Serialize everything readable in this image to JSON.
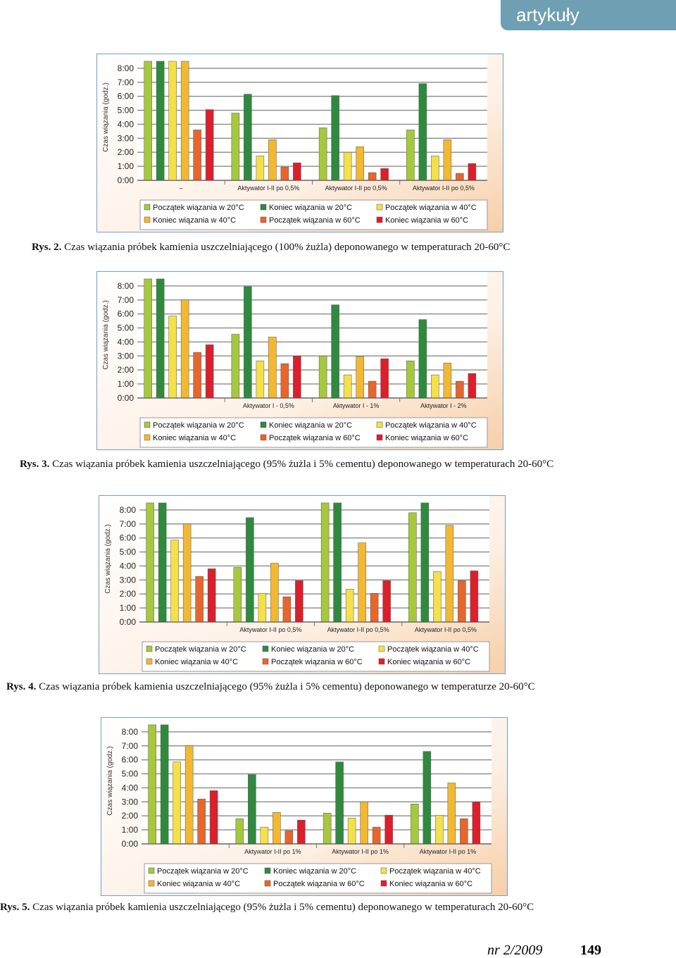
{
  "header": "artykuły",
  "footer": {
    "issue": "nr 2/2009",
    "page": "149"
  },
  "chart_data": [
    {
      "type": "bar",
      "caption_label": "Rys. 2.",
      "caption": "Czas wiązania próbek kamienia uszczelniającego (100% żużla) deponowanego w temperaturach 20-60°C",
      "ylabel": "Czas wiązania (godz.)",
      "categories": [
        "–",
        "Aktywator I-II po 0,5%",
        "Aktywator I-II po 0,5%",
        "Aktywator I-II po 0,5%"
      ],
      "ylim": [
        0,
        9
      ],
      "yticks": [
        {
          "value": 0,
          "label": "0:00"
        },
        {
          "value": 1,
          "label": "1:00"
        },
        {
          "value": 2,
          "label": "2:00"
        },
        {
          "value": 3,
          "label": "3:00"
        },
        {
          "value": 4,
          "label": "4:00"
        },
        {
          "value": 5,
          "label": "5:00"
        },
        {
          "value": 6,
          "label": "6:00"
        },
        {
          "value": 7,
          "label": "7:00"
        },
        {
          "value": 8,
          "label": "8:00"
        }
      ],
      "grid": true,
      "series": [
        {
          "name": "Początek wiązania w 20°C",
          "color": "#a6c83c",
          "values": [
            8.5,
            4.8,
            3.75,
            3.6
          ]
        },
        {
          "name": "Koniec wiązania w 20°C",
          "color": "#2f8a3e",
          "values": [
            8.5,
            6.15,
            6.05,
            6.9
          ]
        },
        {
          "name": "Początek wiązania w 40°C",
          "color": "#f4e049",
          "values": [
            8.5,
            1.75,
            2.0,
            1.75
          ]
        },
        {
          "name": "Koniec wiązania w 40°C",
          "color": "#f2b832",
          "values": [
            8.5,
            2.9,
            2.4,
            2.9
          ]
        },
        {
          "name": "Początek wiązania w 60°C",
          "color": "#e8652b",
          "values": [
            3.6,
            0.95,
            0.55,
            0.5
          ]
        },
        {
          "name": "Koniec wiązania w 60°C",
          "color": "#dc1f2b",
          "values": [
            5.05,
            1.25,
            0.85,
            1.2
          ]
        }
      ]
    },
    {
      "type": "bar",
      "caption_label": "Rys. 3.",
      "caption": "Czas wiązania próbek kamienia uszczelniającego (95% żużla i 5% cementu) deponowanego w temperaturach 20-60°C",
      "ylabel": "Czas wiązania (godz.)",
      "categories": [
        null,
        "Aktywator I - 0,5%",
        "Aktywator I - 1%",
        "Aktywator I - 2%"
      ],
      "ylim": [
        0,
        9
      ],
      "yticks": [
        {
          "value": 0,
          "label": "0:00"
        },
        {
          "value": 1,
          "label": "1:00"
        },
        {
          "value": 2,
          "label": "2:00"
        },
        {
          "value": 3,
          "label": "3:00"
        },
        {
          "value": 4,
          "label": "4:00"
        },
        {
          "value": 5,
          "label": "5:00"
        },
        {
          "value": 6,
          "label": "6:00"
        },
        {
          "value": 7,
          "label": "7:00"
        },
        {
          "value": 8,
          "label": "8:00"
        }
      ],
      "grid": true,
      "series": [
        {
          "name": "Początek wiązania w 20°C",
          "color": "#a6c83c",
          "values": [
            8.5,
            4.55,
            3.0,
            2.65
          ]
        },
        {
          "name": "Koniec wiązania w 20°C",
          "color": "#2f8a3e",
          "values": [
            8.5,
            7.95,
            6.65,
            5.6
          ]
        },
        {
          "name": "Początek wiązania w 40°C",
          "color": "#f4e049",
          "values": [
            5.85,
            2.65,
            1.65,
            1.65
          ]
        },
        {
          "name": "Koniec wiązania w 40°C",
          "color": "#f2b832",
          "values": [
            7.0,
            4.35,
            2.95,
            2.5
          ]
        },
        {
          "name": "Początek wiązania w 60°C",
          "color": "#e8652b",
          "values": [
            3.25,
            2.45,
            1.2,
            1.2
          ]
        },
        {
          "name": "Koniec wiązania w 60°C",
          "color": "#dc1f2b",
          "values": [
            3.8,
            3.0,
            2.8,
            1.75
          ]
        }
      ]
    },
    {
      "type": "bar",
      "caption_label": "Rys. 4.",
      "caption": "Czas wiązania próbek kamienia uszczelniającego (95% żużla i 5% cementu) deponowanego w temperaturze 20-60°C",
      "ylabel": "Czas wiązania (godz.)",
      "categories": [
        null,
        "Aktywator I-II po 0,5%",
        "Aktywator I-II po 0,5%",
        "Aktywator I-II po 0,5%"
      ],
      "ylim": [
        0,
        9
      ],
      "yticks": [
        {
          "value": 0,
          "label": "0:00"
        },
        {
          "value": 1,
          "label": "1:00"
        },
        {
          "value": 2,
          "label": "2:00"
        },
        {
          "value": 3,
          "label": "3:00"
        },
        {
          "value": 4,
          "label": "4:00"
        },
        {
          "value": 5,
          "label": "5:00"
        },
        {
          "value": 6,
          "label": "6:00"
        },
        {
          "value": 7,
          "label": "7:00"
        },
        {
          "value": 8,
          "label": "8:00"
        }
      ],
      "grid": true,
      "series": [
        {
          "name": "Początek wiązania w 20°C",
          "color": "#a6c83c",
          "values": [
            8.5,
            3.9,
            8.5,
            7.8
          ]
        },
        {
          "name": "Koniec wiązania w 20°C",
          "color": "#2f8a3e",
          "values": [
            8.5,
            7.45,
            8.5,
            8.5
          ]
        },
        {
          "name": "Początek wiązania w 40°C",
          "color": "#f4e049",
          "values": [
            5.85,
            2.05,
            2.35,
            3.6
          ]
        },
        {
          "name": "Koniec wiązania w 40°C",
          "color": "#f2b832",
          "values": [
            7.0,
            4.2,
            5.65,
            6.9
          ]
        },
        {
          "name": "Początek wiązania w 60°C",
          "color": "#e8652b",
          "values": [
            3.25,
            1.8,
            2.05,
            2.95
          ]
        },
        {
          "name": "Koniec wiązania w 60°C",
          "color": "#dc1f2b",
          "values": [
            3.8,
            2.95,
            2.95,
            3.65
          ]
        }
      ]
    },
    {
      "type": "bar",
      "caption_label": "Rys. 5.",
      "caption": "Czas wiązania próbek kamienia uszczelniającego (95% żużla i 5% cementu) deponowanego w temperaturach 20-60°C",
      "ylabel": "Czas wiązania (godz.)",
      "categories": [
        null,
        "Aktywator I-II po 1%",
        "Aktywator I-II po 1%",
        "Aktywator I-II po 1%"
      ],
      "ylim": [
        0,
        9
      ],
      "yticks": [
        {
          "value": 0,
          "label": "0:00"
        },
        {
          "value": 1,
          "label": "1:00"
        },
        {
          "value": 2,
          "label": "2:00"
        },
        {
          "value": 3,
          "label": "3:00"
        },
        {
          "value": 4,
          "label": "4:00"
        },
        {
          "value": 5,
          "label": "5:00"
        },
        {
          "value": 6,
          "label": "6:00"
        },
        {
          "value": 7,
          "label": "7:00"
        },
        {
          "value": 8,
          "label": "8:00"
        }
      ],
      "grid": true,
      "series": [
        {
          "name": "Początek wiązania w 20°C",
          "color": "#a6c83c",
          "values": [
            8.5,
            1.8,
            2.2,
            2.85
          ]
        },
        {
          "name": "Koniec wiązania w 20°C",
          "color": "#2f8a3e",
          "values": [
            8.5,
            4.95,
            5.85,
            6.6
          ]
        },
        {
          "name": "Początek wiązania w 40°C",
          "color": "#f4e049",
          "values": [
            5.85,
            1.2,
            1.85,
            2.05
          ]
        },
        {
          "name": "Koniec wiązania w 40°C",
          "color": "#f2b832",
          "values": [
            7.0,
            2.25,
            3.0,
            4.35
          ]
        },
        {
          "name": "Początek wiązania w 60°C",
          "color": "#e8652b",
          "values": [
            3.2,
            0.95,
            1.2,
            1.8
          ]
        },
        {
          "name": "Koniec wiązania w 60°C",
          "color": "#dc1f2b",
          "values": [
            3.8,
            1.7,
            2.05,
            3.0
          ]
        }
      ]
    }
  ]
}
